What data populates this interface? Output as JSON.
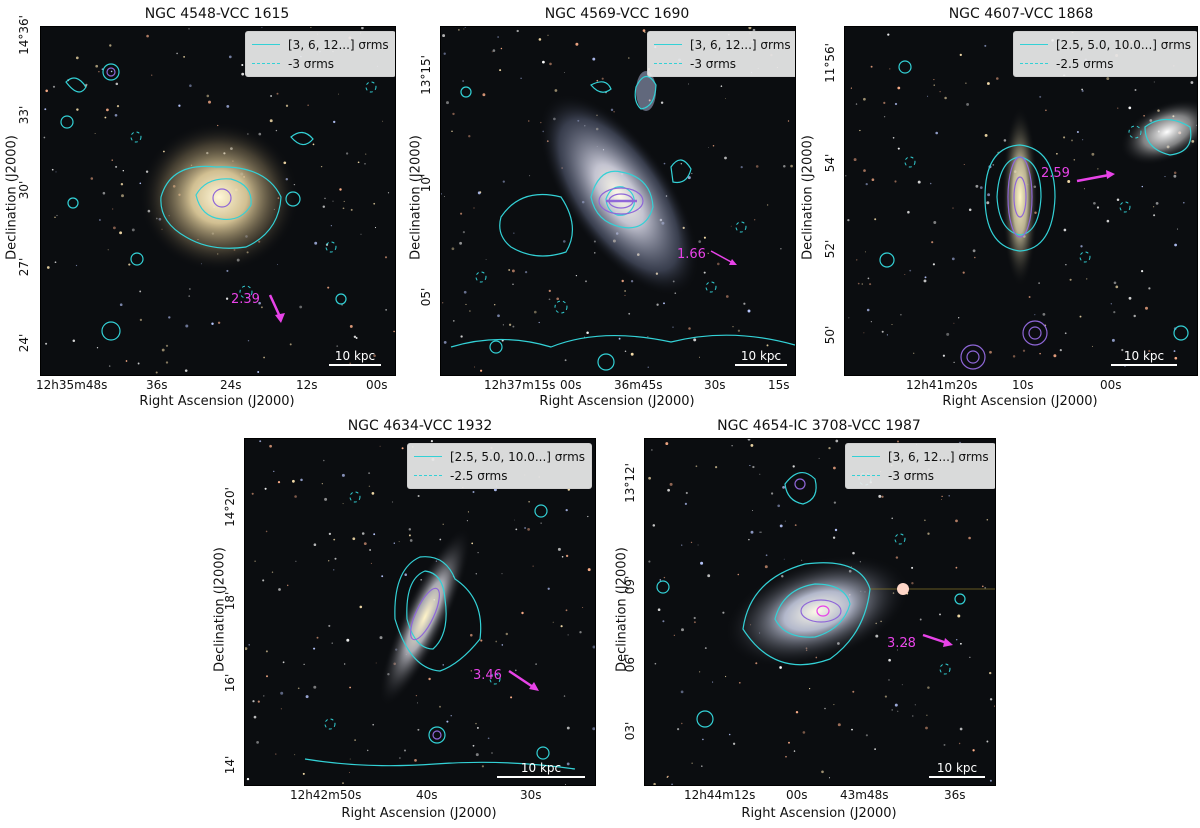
{
  "axis_labels": {
    "x": "Right Ascension (J2000)",
    "y": "Declination (J2000)"
  },
  "colors": {
    "contour_pos": "#33d1d6",
    "contour_inner": "#8f67d8",
    "arrow": "#e843e8"
  },
  "panels": [
    {
      "title": "NGC 4548-VCC 1615",
      "legend": [
        "[3, 6, 12...] σrms",
        "-3 σrms"
      ],
      "velocity_label": "2.39",
      "scale_label": "10 kpc",
      "x_ticks": [
        "12h35m48s",
        "36s",
        "24s",
        "12s",
        "00s"
      ],
      "y_ticks": [
        "14°36'",
        "33'",
        "30'",
        "27'",
        "24'"
      ]
    },
    {
      "title": "NGC 4569-VCC 1690",
      "legend": [
        "[3, 6, 12...] σrms",
        "-3 σrms"
      ],
      "velocity_label": "1.66",
      "scale_label": "10 kpc",
      "x_ticks": [
        "12h37m15s",
        "00s",
        "36m45s",
        "30s",
        "15s"
      ],
      "y_ticks": [
        "13°15'",
        "10'",
        "05'"
      ]
    },
    {
      "title": "NGC 4607-VCC 1868",
      "legend": [
        "[2.5, 5.0, 10.0...] σrms",
        "-2.5 σrms"
      ],
      "velocity_label": "2.59",
      "scale_label": "10 kpc",
      "x_ticks": [
        "12h41m20s",
        "10s",
        "00s"
      ],
      "y_ticks": [
        "11°56'",
        "54'",
        "52'",
        "50'"
      ]
    },
    {
      "title": "NGC 4634-VCC 1932",
      "legend": [
        "[2.5, 5.0, 10.0...] σrms",
        "-2.5 σrms"
      ],
      "velocity_label": "3.46",
      "scale_label": "10 kpc",
      "x_ticks": [
        "12h42m50s",
        "40s",
        "30s"
      ],
      "y_ticks": [
        "14°20'",
        "18'",
        "16'",
        "14'"
      ]
    },
    {
      "title": "NGC 4654-IC 3708-VCC 1987",
      "legend": [
        "[3, 6, 12...] σrms",
        "-3 σrms"
      ],
      "velocity_label": "3.28",
      "scale_label": "10 kpc",
      "x_ticks": [
        "12h44m12s",
        "00s",
        "43m48s",
        "36s"
      ],
      "y_ticks": [
        "13°12'",
        "09'",
        "06'",
        "03'"
      ]
    }
  ]
}
